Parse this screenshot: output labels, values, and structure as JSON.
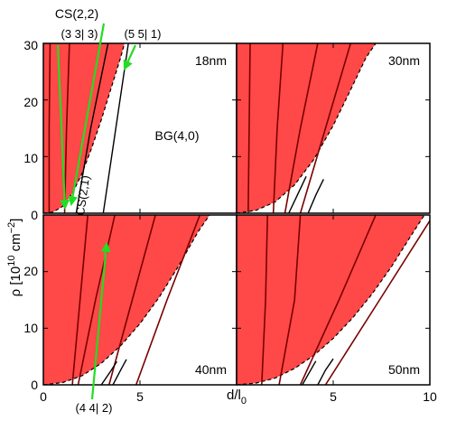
{
  "chart_data": {
    "type": "area",
    "layout": "2x2 panels with shared axes",
    "title": "",
    "xlabel_parts": {
      "main": "d/l",
      "sub": "0"
    },
    "ylabel_parts": {
      "main": "ρ [10",
      "sup1": "10",
      "mid": " cm",
      "sup2": "−2",
      "end": "]"
    },
    "xlim": [
      0,
      10
    ],
    "ylim": [
      0,
      30
    ],
    "xticks": [
      0,
      5,
      10
    ],
    "yticks": [
      0,
      10,
      20,
      30
    ],
    "x_tick_labels": [
      "0",
      "5",
      "5",
      "10"
    ],
    "y_tick_labels": [
      "0",
      "10",
      "20",
      "0",
      "10",
      "20",
      "30"
    ],
    "colors": {
      "region": "#ff4848",
      "curve": "#7a0000",
      "boundary": "#000000",
      "arrow": "#22dd22",
      "axis": "#000000"
    },
    "panels": [
      {
        "label": "18nm",
        "region_boundary": {
          "x": [
            0,
            0.5,
            1,
            1.5,
            2,
            2.5,
            3,
            3.5,
            4,
            4.2
          ],
          "y": [
            0,
            0.2,
            1.2,
            3.5,
            7,
            11.5,
            16.5,
            22,
            27.5,
            30
          ]
        },
        "curves": [
          {
            "x": [
              0.3,
              0.3,
              0.35
            ],
            "y": [
              0,
              15,
              30
            ]
          },
          {
            "x": [
              1.1,
              1.2,
              1.35
            ],
            "y": [
              0,
              15,
              30
            ]
          }
        ],
        "boundary_lines": [
          {
            "x": [
              1.7,
              2.45,
              3.35
            ],
            "y": [
              0,
              15,
              30
            ]
          },
          {
            "x": [
              3.1,
              3.75,
              4.4
            ],
            "y": [
              0,
              15,
              30
            ]
          }
        ]
      },
      {
        "label": "30nm",
        "region_boundary": {
          "x": [
            0,
            1,
            2,
            3,
            4,
            5,
            6,
            6.7,
            7.2
          ],
          "y": [
            0,
            0.5,
            2,
            5,
            9.5,
            15.5,
            22.5,
            27.5,
            30
          ]
        },
        "curves": [
          {
            "x": [
              0.6,
              0.65,
              0.7
            ],
            "y": [
              0,
              15,
              30
            ]
          },
          {
            "x": [
              1.9,
              2.1,
              2.4
            ],
            "y": [
              0,
              15,
              30
            ]
          },
          {
            "x": [
              2.5,
              3.3,
              4.2
            ],
            "y": [
              0,
              15,
              30
            ]
          },
          {
            "x": [
              3.3,
              4.6,
              5.9
            ],
            "y": [
              0,
              15,
              30
            ]
          }
        ],
        "boundary_lines": [
          {
            "x": [
              2.7,
              3.2,
              3.6
            ],
            "y": [
              0,
              3.6,
              6.5
            ]
          },
          {
            "x": [
              3.7,
              4.1,
              4.5
            ],
            "y": [
              0,
              3.2,
              6.0
            ]
          }
        ]
      },
      {
        "label": "40nm",
        "region_boundary": {
          "x": [
            0,
            1,
            2,
            3,
            4,
            5,
            6,
            7,
            8,
            8.6
          ],
          "y": [
            0,
            0.4,
            1.6,
            3.8,
            6.9,
            10.8,
            15.5,
            21,
            27,
            30
          ]
        },
        "curves": [
          {
            "x": [
              1.5,
              1.9,
              2.3
            ],
            "y": [
              0,
              15,
              30
            ]
          },
          {
            "x": [
              1.8,
              2.7,
              3.7
            ],
            "y": [
              0,
              15,
              30
            ]
          },
          {
            "x": [
              3.4,
              4.6,
              5.8
            ],
            "y": [
              0,
              15,
              30
            ]
          },
          {
            "x": [
              4.8,
              6.4,
              8.1
            ],
            "y": [
              0,
              15,
              30
            ]
          }
        ],
        "boundary_lines": [
          {
            "x": [
              3.0,
              3.5,
              3.8
            ],
            "y": [
              0,
              2.5,
              4.1
            ]
          },
          {
            "x": [
              3.6,
              4.0,
              4.3
            ],
            "y": [
              0,
              2.6,
              4.5
            ]
          }
        ]
      },
      {
        "label": "50nm",
        "region_boundary": {
          "x": [
            0,
            1,
            2,
            3,
            4,
            5,
            6,
            7,
            8,
            9,
            10
          ],
          "y": [
            0,
            0.3,
            1.2,
            2.9,
            5.2,
            8.2,
            11.8,
            16,
            20.8,
            26.2,
            31.5
          ]
        },
        "curves": [
          {
            "x": [
              1.3,
              1.5,
              1.6
            ],
            "y": [
              0,
              15,
              30
            ]
          },
          {
            "x": [
              2.2,
              3.0,
              3.3
            ],
            "y": [
              0,
              15,
              30
            ]
          },
          {
            "x": [
              3.3,
              5.3,
              7.2
            ],
            "y": [
              0,
              15,
              30
            ]
          },
          {
            "x": [
              4.6,
              7.4,
              10
            ],
            "y": [
              0,
              15,
              29
            ]
          }
        ],
        "boundary_lines": [
          {
            "x": [
              3.4,
              3.8,
              4.1
            ],
            "y": [
              0,
              2.4,
              4.2
            ]
          },
          {
            "x": [
              4.2,
              4.6,
              5.0
            ],
            "y": [
              0,
              2.6,
              4.6
            ]
          }
        ]
      }
    ],
    "annotations": [
      {
        "text": "CS(2,2)",
        "panel": 0
      },
      {
        "text": "(3 3| 3)",
        "panel": 0
      },
      {
        "text": "(5 5| 1)",
        "panel": 0
      },
      {
        "text": "BG(4,0)",
        "panel": 0
      },
      {
        "text": "CS(2,1)",
        "panel": 0
      },
      {
        "text": "(4 4| 2)",
        "panel": 2
      }
    ]
  }
}
